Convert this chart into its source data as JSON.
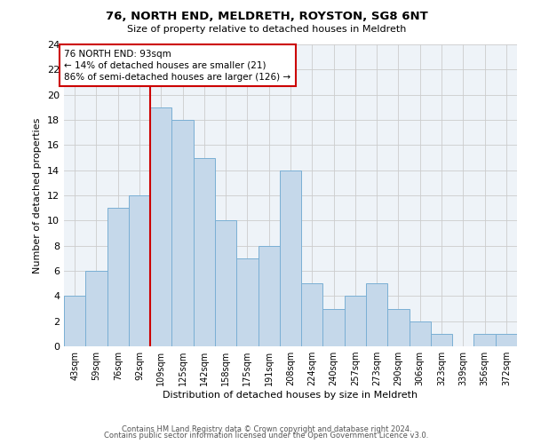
{
  "title": "76, NORTH END, MELDRETH, ROYSTON, SG8 6NT",
  "subtitle": "Size of property relative to detached houses in Meldreth",
  "xlabel": "Distribution of detached houses by size in Meldreth",
  "ylabel": "Number of detached properties",
  "bin_labels": [
    "43sqm",
    "59sqm",
    "76sqm",
    "92sqm",
    "109sqm",
    "125sqm",
    "142sqm",
    "158sqm",
    "175sqm",
    "191sqm",
    "208sqm",
    "224sqm",
    "240sqm",
    "257sqm",
    "273sqm",
    "290sqm",
    "306sqm",
    "323sqm",
    "339sqm",
    "356sqm",
    "372sqm"
  ],
  "bar_heights": [
    4,
    6,
    11,
    12,
    19,
    18,
    15,
    10,
    7,
    8,
    14,
    5,
    3,
    4,
    5,
    3,
    2,
    1,
    0,
    1,
    1
  ],
  "bar_color": "#c5d8ea",
  "bar_edge_color": "#7aafd4",
  "vline_x_idx": 3,
  "vline_color": "#cc0000",
  "annotation_line1": "76 NORTH END: 93sqm",
  "annotation_line2": "← 14% of detached houses are smaller (21)",
  "annotation_line3": "86% of semi-detached houses are larger (126) →",
  "annotation_box_color": "#ffffff",
  "annotation_box_edge": "#cc0000",
  "ylim": [
    0,
    24
  ],
  "yticks": [
    0,
    2,
    4,
    6,
    8,
    10,
    12,
    14,
    16,
    18,
    20,
    22,
    24
  ],
  "grid_color": "#cccccc",
  "background_color": "#ffffff",
  "plot_bg_color": "#eef3f8",
  "footer_line1": "Contains HM Land Registry data © Crown copyright and database right 2024.",
  "footer_line2": "Contains public sector information licensed under the Open Government Licence v3.0."
}
